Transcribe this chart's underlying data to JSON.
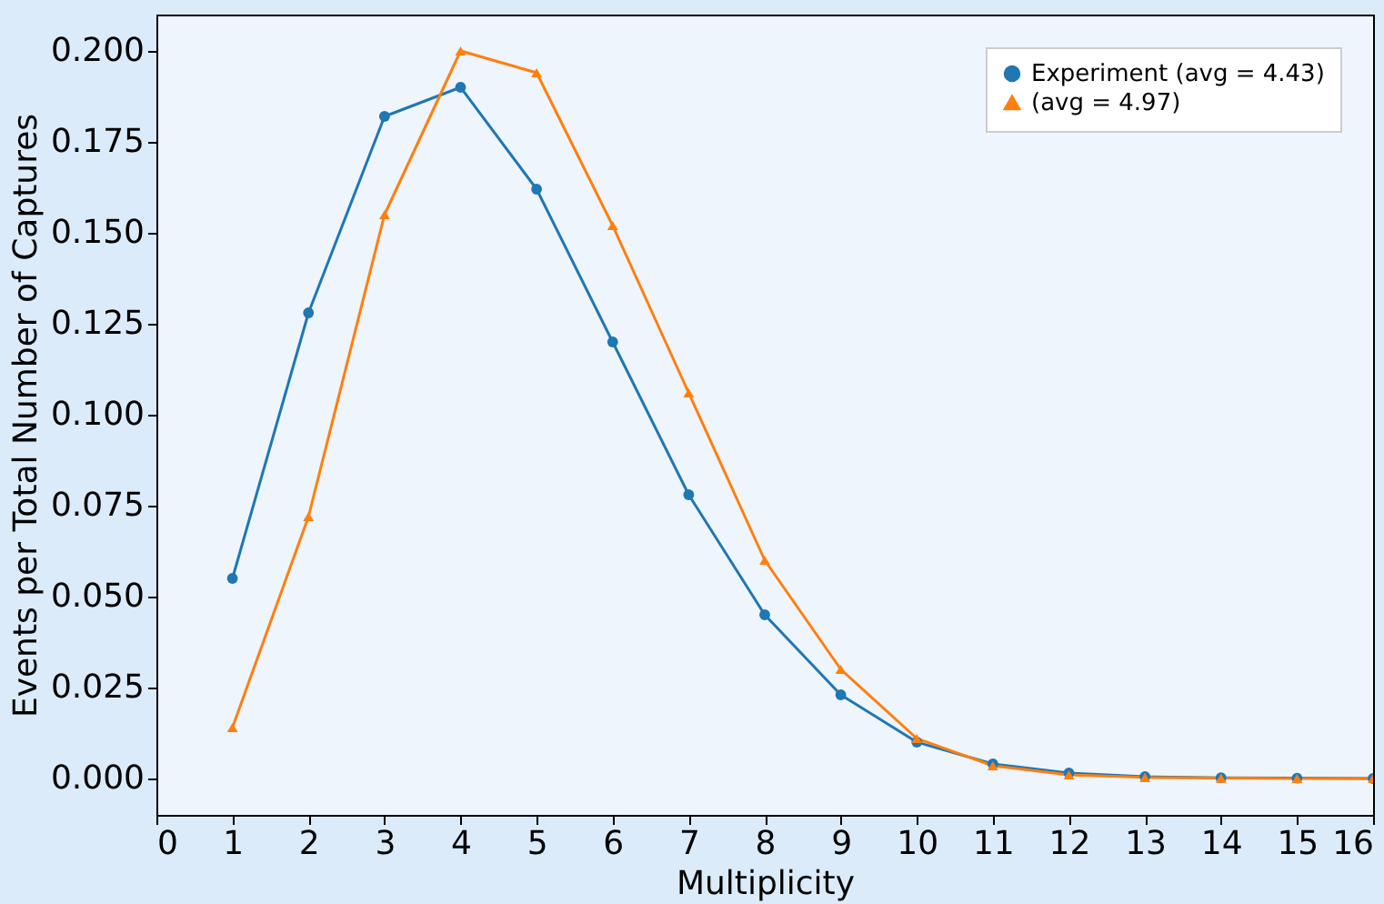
{
  "chart_data": {
    "type": "line",
    "xlabel": "Multiplicity",
    "ylabel": "Events per Total Number of Captures",
    "x": [
      1,
      2,
      3,
      4,
      5,
      6,
      7,
      8,
      9,
      10,
      11,
      12,
      13,
      14,
      15,
      16
    ],
    "series": [
      {
        "name": "Experiment (avg = 4.43)",
        "color": "#1f77b4",
        "marker": "circle",
        "values": [
          0.055,
          0.128,
          0.182,
          0.19,
          0.162,
          0.12,
          0.078,
          0.045,
          0.023,
          0.01,
          0.004,
          0.0015,
          0.0005,
          0.0002,
          0.0001,
          0.0
        ]
      },
      {
        "name": "(avg = 4.97)",
        "color": "#ff7f0e",
        "marker": "triangle",
        "values": [
          0.014,
          0.072,
          0.155,
          0.2,
          0.194,
          0.152,
          0.106,
          0.06,
          0.03,
          0.011,
          0.0035,
          0.001,
          0.0003,
          0.0001,
          0.0,
          0.0
        ]
      }
    ],
    "xlim": [
      0,
      16
    ],
    "xticks": [
      0,
      1,
      2,
      3,
      4,
      5,
      6,
      7,
      8,
      9,
      10,
      11,
      12,
      13,
      14,
      15,
      16
    ],
    "ylim": [
      -0.01,
      0.21
    ],
    "yticks": [
      {
        "value": 0,
        "label": "0.000"
      },
      {
        "value": 0.025,
        "label": "0.025"
      },
      {
        "value": 0.05,
        "label": "0.050"
      },
      {
        "value": 0.075,
        "label": "0.075"
      },
      {
        "value": 0.1,
        "label": "0.100"
      },
      {
        "value": 0.125,
        "label": "0.125"
      },
      {
        "value": 0.15,
        "label": "0.150"
      },
      {
        "value": 0.175,
        "label": "0.175"
      },
      {
        "value": 0.2,
        "label": "0.200"
      }
    ],
    "grid": false,
    "legend": "top right",
    "line_style": "solid"
  }
}
